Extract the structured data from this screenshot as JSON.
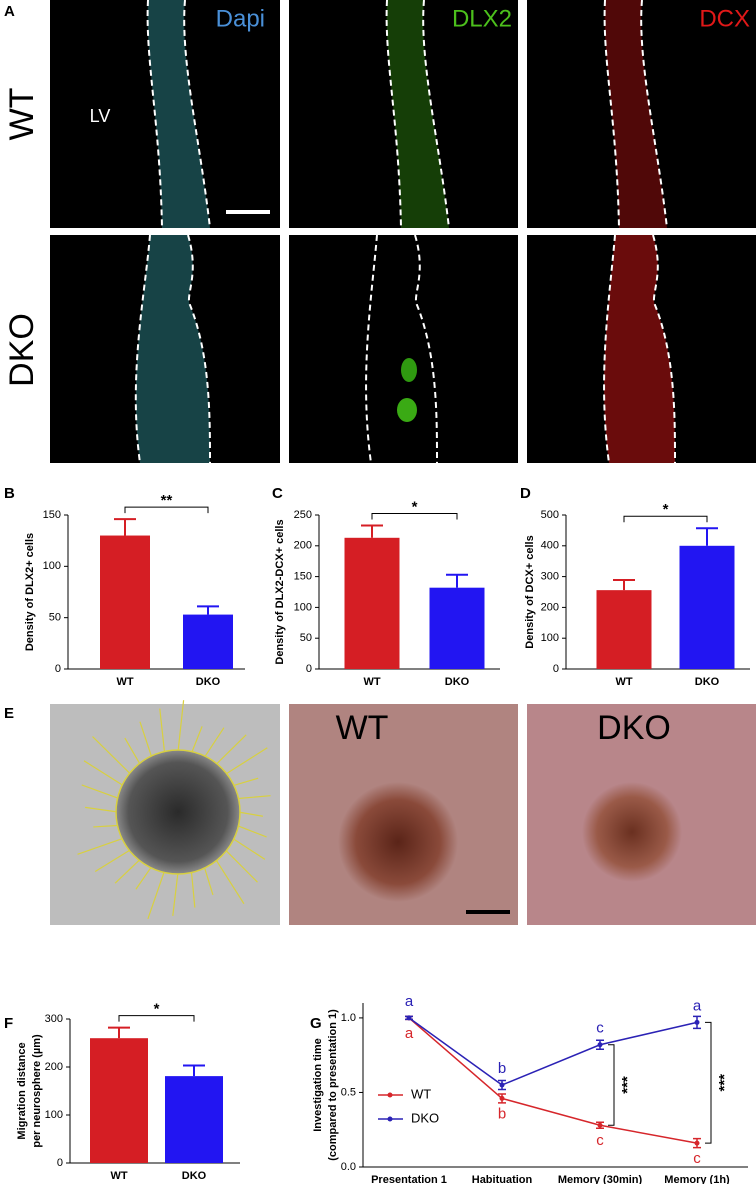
{
  "figure": {
    "panel_a": {
      "letter": "A",
      "channels": [
        "Dapi",
        "DLX2",
        "DCX"
      ],
      "rows": [
        "WT",
        "DKO"
      ],
      "region": "LV"
    },
    "panel_e": {
      "letter": "E",
      "labels": [
        "WT",
        "DKO"
      ]
    }
  },
  "chart_data": [
    {
      "type": "bar",
      "panel": "B",
      "ylabel": "Density of DLX2+ cells",
      "categories": [
        "WT",
        "DKO"
      ],
      "values": [
        130,
        53
      ],
      "errors": [
        16,
        8
      ],
      "colors": [
        "#d51e24",
        "#2215f2"
      ],
      "ylim": [
        0,
        150
      ],
      "yticks": [
        0,
        50,
        100,
        150
      ],
      "significance": "**"
    },
    {
      "type": "bar",
      "panel": "C",
      "ylabel": "Density of DLX2-DCX+ cells",
      "categories": [
        "WT",
        "DKO"
      ],
      "values": [
        213,
        132
      ],
      "errors": [
        20,
        21
      ],
      "colors": [
        "#d51e24",
        "#2215f2"
      ],
      "ylim": [
        0,
        250
      ],
      "yticks": [
        0,
        50,
        100,
        150,
        200,
        250
      ],
      "significance": "*"
    },
    {
      "type": "bar",
      "panel": "D",
      "ylabel": "Density of DCX+ cells",
      "categories": [
        "WT",
        "DKO"
      ],
      "values": [
        256,
        400
      ],
      "errors": [
        33,
        57
      ],
      "colors": [
        "#d51e24",
        "#2215f2"
      ],
      "ylim": [
        0,
        500
      ],
      "yticks": [
        0,
        100,
        200,
        300,
        400,
        500
      ],
      "significance": "*"
    },
    {
      "type": "bar",
      "panel": "F",
      "ylabel": [
        "Migration distance",
        "per neurosphere (µm)"
      ],
      "categories": [
        "WT",
        "DKO"
      ],
      "values": [
        260,
        181
      ],
      "errors": [
        22,
        22
      ],
      "colors": [
        "#d51e24",
        "#2215f2"
      ],
      "ylim": [
        0,
        300
      ],
      "yticks": [
        0,
        100,
        200,
        300
      ],
      "significance": "*"
    },
    {
      "type": "line",
      "panel": "G",
      "ylabel": [
        "Investigation time",
        "(compared to presentation 1)"
      ],
      "categories": [
        "Presentation 1",
        "Habituation",
        "Memory (30min)",
        "Memory (1h)"
      ],
      "series": [
        {
          "name": "WT",
          "color": "#d6262b",
          "values": [
            1.0,
            0.46,
            0.28,
            0.16
          ],
          "errors": [
            0.01,
            0.03,
            0.02,
            0.03
          ],
          "letters": [
            "a",
            "b",
            "c",
            "c"
          ]
        },
        {
          "name": "DKO",
          "color": "#2b22b5",
          "values": [
            1.0,
            0.55,
            0.82,
            0.97
          ],
          "errors": [
            0.01,
            0.03,
            0.03,
            0.04
          ],
          "letters": [
            "a",
            "b",
            "c",
            "a"
          ]
        }
      ],
      "ylim": [
        0,
        1.1
      ],
      "yticks": [
        {
          "value": 0,
          "label": "0.0"
        },
        0.5,
        {
          "value": 1,
          "label": "1.0"
        }
      ],
      "significance": [
        "***",
        "***"
      ],
      "legend": "lower left"
    }
  ]
}
